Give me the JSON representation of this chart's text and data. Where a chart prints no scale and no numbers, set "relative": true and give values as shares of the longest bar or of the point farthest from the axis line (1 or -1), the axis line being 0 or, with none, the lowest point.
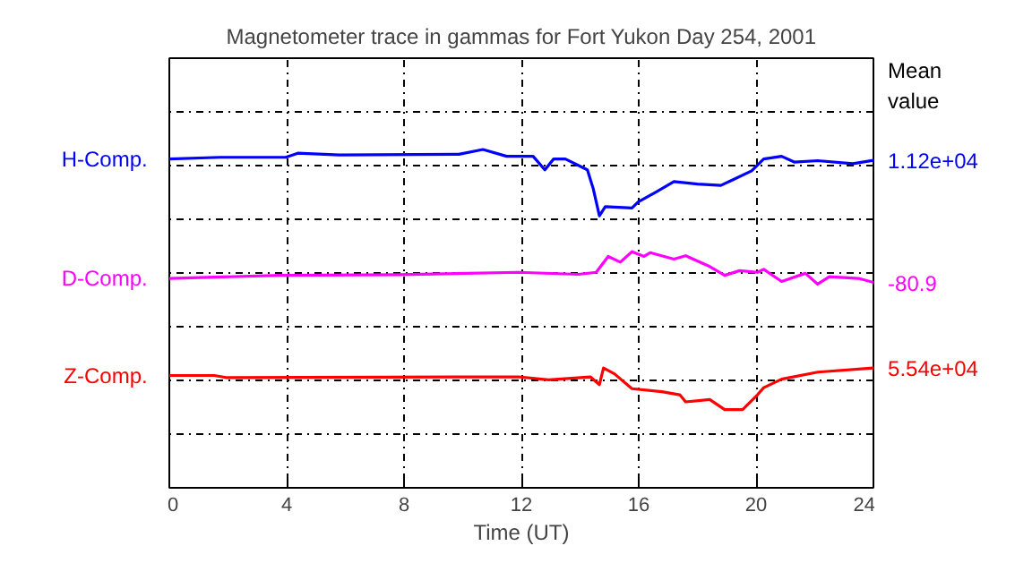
{
  "chart_data": {
    "type": "line",
    "title": "Magnetometer trace in gammas for Fort Yukon Day 254, 2001",
    "xlabel": "Time (UT)",
    "xlim": [
      0,
      24
    ],
    "xticks": [
      0,
      4,
      8,
      12,
      16,
      20,
      24
    ],
    "relative": true,
    "grid": true,
    "series": [
      {
        "name": "H-Comp.",
        "color": "#0000ff",
        "x": [
          0,
          1.73,
          3.97,
          4.38,
          5.8,
          9.87,
          10.69,
          11.5,
          12.4,
          12.8,
          13.1,
          13.5,
          14.25,
          14.45,
          14.66,
          14.86,
          15.77,
          15.98,
          16.6,
          17.2,
          18.0,
          18.8,
          19.2,
          19.85,
          20.26,
          20.87,
          21.3,
          22.1,
          23.3,
          24
        ],
        "values": [
          0.972,
          0.977,
          0.977,
          0.989,
          0.984,
          0.986,
          1.0,
          0.98,
          0.98,
          0.94,
          0.972,
          0.972,
          0.94,
          0.884,
          0.804,
          0.831,
          0.827,
          0.845,
          0.875,
          0.905,
          0.898,
          0.894,
          0.91,
          0.937,
          0.972,
          0.98,
          0.963,
          0.967,
          0.958,
          0.968
        ]
      },
      {
        "name": "D-Comp.",
        "color": "#ff00ff",
        "x": [
          0,
          3.77,
          7.84,
          11.9,
          13.94,
          14.55,
          14.96,
          15.37,
          15.77,
          16.18,
          16.39,
          17.2,
          17.6,
          18.42,
          18.93,
          19.44,
          20.05,
          20.26,
          20.87,
          21.68,
          22.1,
          22.5,
          23.5,
          24
        ],
        "values": [
          0.619,
          0.628,
          0.63,
          0.637,
          0.631,
          0.637,
          0.684,
          0.667,
          0.698,
          0.684,
          0.695,
          0.676,
          0.686,
          0.654,
          0.628,
          0.642,
          0.637,
          0.646,
          0.61,
          0.634,
          0.602,
          0.624,
          0.619,
          0.607
        ]
      },
      {
        "name": "Z-Comp.",
        "color": "#ff0000",
        "x": [
          0,
          1.53,
          1.93,
          11.9,
          12.93,
          14.35,
          14.66,
          14.8,
          15.17,
          15.77,
          16.79,
          17.4,
          17.6,
          18.42,
          18.93,
          19.54,
          20.05,
          20.26,
          20.87,
          22.1,
          24
        ],
        "values": [
          0.332,
          0.332,
          0.326,
          0.328,
          0.319,
          0.328,
          0.305,
          0.354,
          0.337,
          0.293,
          0.284,
          0.275,
          0.254,
          0.261,
          0.231,
          0.231,
          0.275,
          0.296,
          0.321,
          0.342,
          0.354
        ]
      }
    ],
    "annotations": [
      "Mean value",
      "1.12e+04",
      "-80.9",
      "5.54e+04"
    ]
  }
}
